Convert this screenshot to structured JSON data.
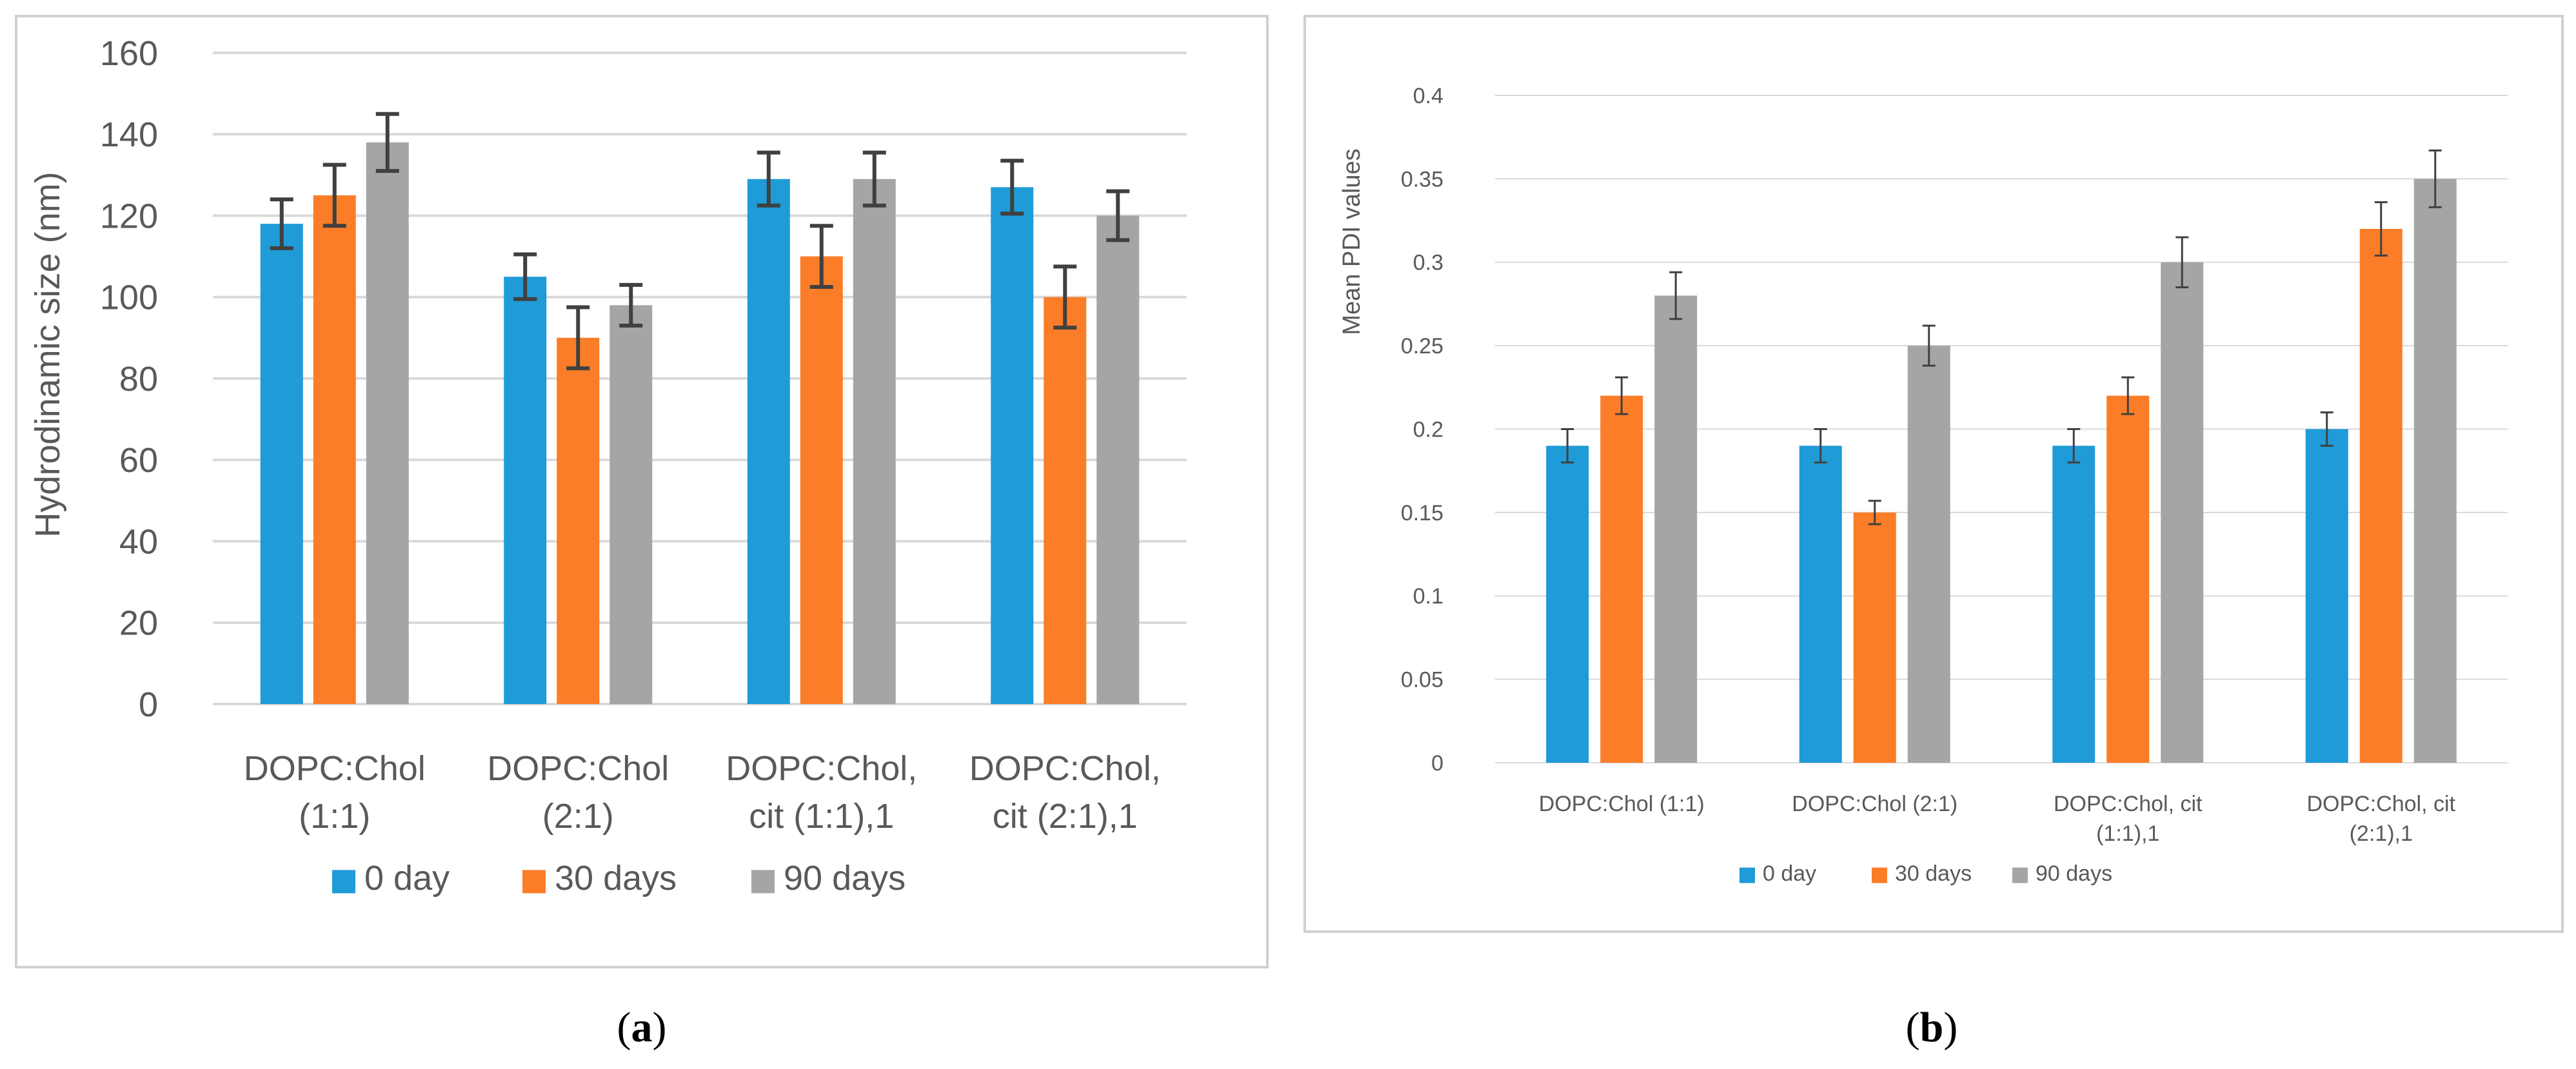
{
  "chart_data": [
    {
      "type": "bar",
      "panel": "a",
      "caption_letter": "a",
      "title": "",
      "ylabel": "Hydrodinamic size (nm)",
      "xlabel": "",
      "ylim": [
        0,
        160
      ],
      "ytick_step": 20,
      "ytick_labels": [
        "0",
        "20",
        "40",
        "60",
        "80",
        "100",
        "120",
        "140",
        "160"
      ],
      "categories": [
        [
          "DOPC:Chol",
          "(1:1)"
        ],
        [
          "DOPC:Chol",
          "(2:1)"
        ],
        [
          "DOPC:Chol,",
          "cit (1:1),1"
        ],
        [
          "DOPC:Chol,",
          "cit (2:1),1"
        ]
      ],
      "grid": true,
      "legend_position": "bottom",
      "series": [
        {
          "name": "0 day",
          "color": "#1f9bd7",
          "values": [
            118,
            105,
            129,
            127
          ],
          "errors": [
            6,
            5.5,
            6.5,
            6.5
          ]
        },
        {
          "name": "30 days",
          "color": "#fb7d28",
          "values": [
            125,
            90,
            110,
            100
          ],
          "errors": [
            7.5,
            7.5,
            7.5,
            7.5
          ]
        },
        {
          "name": "90 days",
          "color": "#a5a5a5",
          "values": [
            138,
            98,
            129,
            120
          ],
          "errors": [
            7,
            5,
            6.5,
            6
          ]
        }
      ]
    },
    {
      "type": "bar",
      "panel": "b",
      "caption_letter": "b",
      "title": "",
      "ylabel": "Mean PDI values",
      "xlabel": "",
      "ylim": [
        0,
        0.4
      ],
      "ytick_step": 0.05,
      "ytick_labels": [
        "0",
        "0.05",
        "0.1",
        "0.15",
        "0.2",
        "0.25",
        "0.3",
        "0.35",
        "0.4"
      ],
      "categories": [
        [
          "DOPC:Chol (1:1)"
        ],
        [
          "DOPC:Chol (2:1)"
        ],
        [
          "DOPC:Chol, cit",
          "(1:1),1"
        ],
        [
          "DOPC:Chol, cit",
          "(2:1),1"
        ]
      ],
      "grid": true,
      "legend_position": "bottom",
      "series": [
        {
          "name": "0 day",
          "color": "#1f9bd7",
          "values": [
            0.19,
            0.19,
            0.19,
            0.2
          ],
          "errors": [
            0.01,
            0.01,
            0.01,
            0.01
          ]
        },
        {
          "name": "30 days",
          "color": "#fb7d28",
          "values": [
            0.22,
            0.15,
            0.22,
            0.32
          ],
          "errors": [
            0.011,
            0.007,
            0.011,
            0.016
          ]
        },
        {
          "name": "90 days",
          "color": "#a5a5a5",
          "values": [
            0.28,
            0.25,
            0.3,
            0.35
          ],
          "errors": [
            0.014,
            0.012,
            0.015,
            0.017
          ]
        }
      ]
    }
  ]
}
